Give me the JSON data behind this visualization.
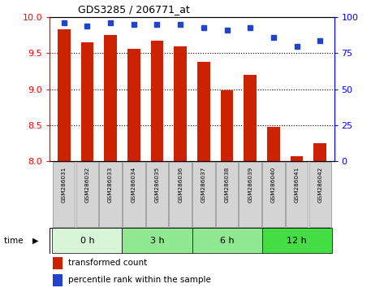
{
  "title": "GDS3285 / 206771_at",
  "samples": [
    "GSM286031",
    "GSM286032",
    "GSM286033",
    "GSM286034",
    "GSM286035",
    "GSM286036",
    "GSM286037",
    "GSM286038",
    "GSM286039",
    "GSM286040",
    "GSM286041",
    "GSM286042"
  ],
  "bar_values": [
    9.83,
    9.65,
    9.75,
    9.56,
    9.67,
    9.6,
    9.38,
    8.99,
    9.2,
    8.48,
    8.07,
    8.25
  ],
  "dot_values": [
    96,
    94,
    96,
    95,
    95,
    95,
    93,
    91,
    93,
    86,
    80,
    84
  ],
  "groups": [
    {
      "label": "0 h",
      "start": 0,
      "end": 3,
      "color": "#d8f5d8"
    },
    {
      "label": "3 h",
      "start": 3,
      "end": 6,
      "color": "#90e890"
    },
    {
      "label": "6 h",
      "start": 6,
      "end": 9,
      "color": "#90e890"
    },
    {
      "label": "12 h",
      "start": 9,
      "end": 12,
      "color": "#44dd44"
    }
  ],
  "ylim": [
    8,
    10
  ],
  "y_ticks": [
    8,
    8.5,
    9,
    9.5,
    10
  ],
  "y2_ticks": [
    0,
    25,
    50,
    75,
    100
  ],
  "bar_color": "#cc2200",
  "dot_color": "#2244cc",
  "bar_bottom": 8,
  "label_box_color": "#d4d4d4",
  "background_color": "#ffffff",
  "bar_width": 0.55
}
